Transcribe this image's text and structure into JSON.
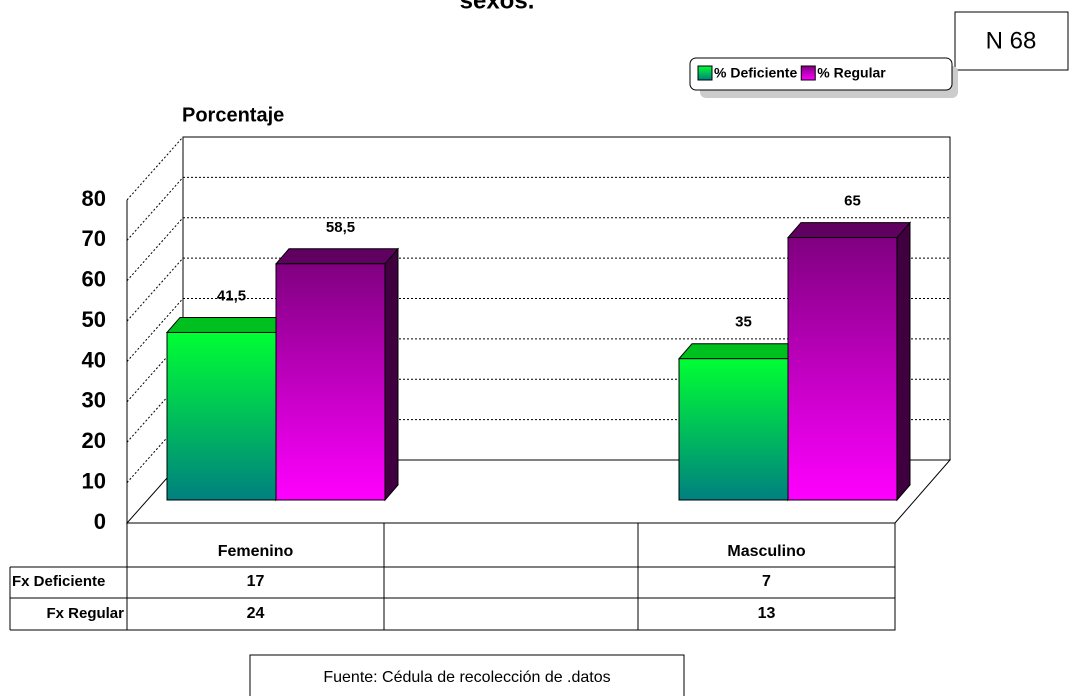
{
  "chart_data": {
    "type": "bar",
    "title": "sexos.",
    "y_axis_label": "Porcentaje",
    "note": "N 68",
    "source": "Fuente: Cédula de recolección de .datos",
    "categories": [
      "Femenino",
      null,
      "Masculino"
    ],
    "series": [
      {
        "name": "% Deficiente",
        "color": "#00ff33",
        "values": [
          41.5,
          null,
          35
        ],
        "value_labels": [
          "41,5",
          null,
          "35"
        ]
      },
      {
        "name": "% Regular",
        "color": "#ff00ff",
        "values": [
          58.5,
          null,
          65
        ],
        "value_labels": [
          "58,5",
          null,
          "65"
        ]
      }
    ],
    "ylim": [
      0,
      80
    ],
    "yticks": [
      0,
      10,
      20,
      30,
      40,
      50,
      60,
      70,
      80
    ],
    "grid": true,
    "legend": "top-right",
    "data_table": [
      {
        "label": "Fx Deficiente",
        "values": [
          17,
          null,
          7
        ]
      },
      {
        "label": "Fx Regular",
        "values": [
          24,
          null,
          13
        ]
      }
    ]
  }
}
